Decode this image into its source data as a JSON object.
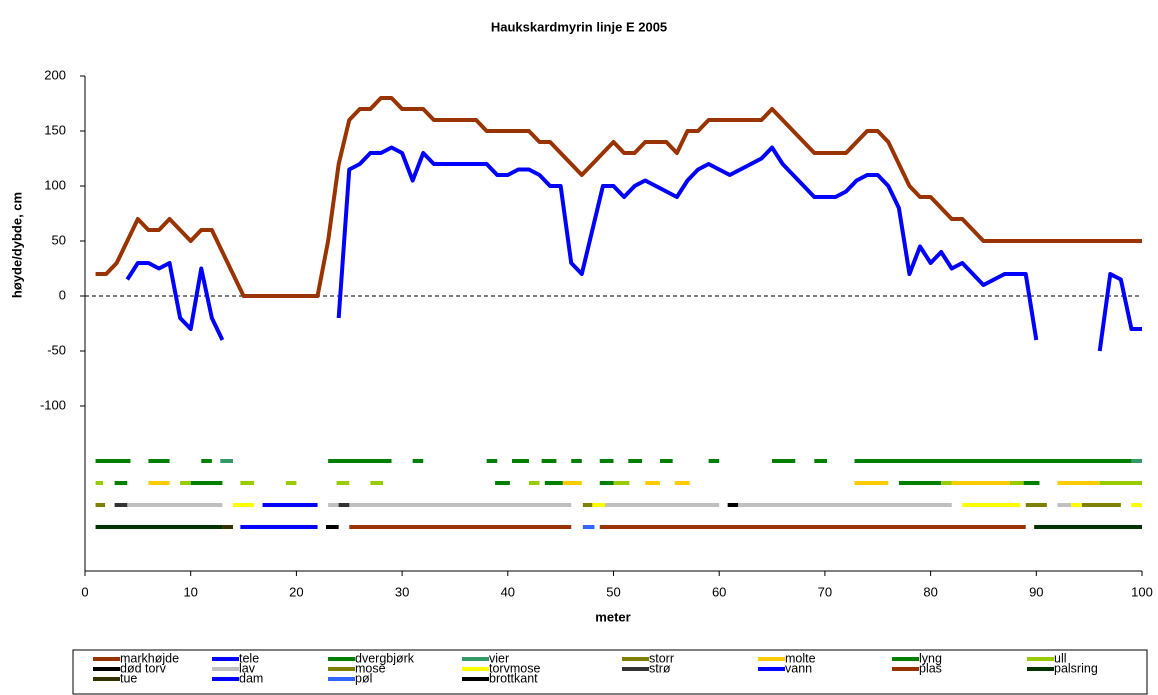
{
  "chart_data": {
    "type": "line",
    "title": "Haukskardmyrin linje E 2005",
    "x_label": "meter",
    "y_label": "høyde/dybde, cm",
    "xlim": [
      0,
      100
    ],
    "xticks": [
      0,
      10,
      20,
      30,
      40,
      50,
      60,
      70,
      80,
      90,
      100
    ],
    "ylim": [
      -250,
      200
    ],
    "yticks": [
      -100,
      -50,
      0,
      50,
      100,
      150,
      200
    ],
    "reference_line": 0,
    "x": [
      1,
      2,
      3,
      4,
      5,
      6,
      7,
      8,
      9,
      10,
      11,
      12,
      13,
      14,
      15,
      16,
      17,
      18,
      19,
      20,
      21,
      22,
      23,
      24,
      25,
      26,
      27,
      28,
      29,
      30,
      31,
      32,
      33,
      34,
      35,
      36,
      37,
      38,
      39,
      40,
      41,
      42,
      43,
      44,
      45,
      46,
      47,
      48,
      49,
      50,
      51,
      52,
      53,
      54,
      55,
      56,
      57,
      58,
      59,
      60,
      61,
      62,
      63,
      64,
      65,
      66,
      67,
      68,
      69,
      70,
      71,
      72,
      73,
      74,
      75,
      76,
      77,
      78,
      79,
      80,
      81,
      82,
      83,
      84,
      85,
      86,
      87,
      88,
      89,
      90,
      91,
      92,
      93,
      94,
      95,
      96,
      97,
      98,
      99,
      100
    ],
    "series": [
      {
        "name": "markhøjde",
        "color": "#993300",
        "values": [
          20,
          20,
          30,
          50,
          70,
          60,
          60,
          70,
          60,
          50,
          60,
          60,
          40,
          20,
          0,
          0,
          0,
          0,
          0,
          0,
          0,
          0,
          50,
          120,
          160,
          170,
          170,
          180,
          180,
          170,
          170,
          170,
          160,
          160,
          160,
          160,
          160,
          150,
          150,
          150,
          150,
          150,
          140,
          140,
          130,
          120,
          110,
          120,
          130,
          140,
          130,
          130,
          140,
          140,
          140,
          130,
          150,
          150,
          160,
          160,
          160,
          160,
          160,
          160,
          170,
          160,
          150,
          140,
          130,
          130,
          130,
          130,
          140,
          150,
          150,
          140,
          120,
          100,
          90,
          90,
          80,
          70,
          70,
          60,
          50,
          50,
          50,
          50,
          50,
          50,
          50,
          50,
          50,
          50,
          50,
          50,
          50,
          50,
          50,
          50
        ]
      },
      {
        "name": "tele",
        "color": "#0000FF",
        "values": [
          null,
          null,
          null,
          15,
          30,
          30,
          25,
          30,
          -20,
          -30,
          25,
          -20,
          -40,
          null,
          null,
          null,
          null,
          null,
          null,
          null,
          null,
          null,
          null,
          -20,
          115,
          120,
          130,
          130,
          135,
          130,
          105,
          130,
          120,
          120,
          120,
          120,
          120,
          120,
          110,
          110,
          115,
          115,
          110,
          100,
          100,
          30,
          20,
          60,
          100,
          100,
          90,
          100,
          105,
          100,
          95,
          90,
          105,
          115,
          120,
          115,
          110,
          115,
          120,
          125,
          135,
          120,
          110,
          100,
          90,
          90,
          90,
          95,
          105,
          110,
          110,
          100,
          80,
          20,
          45,
          30,
          40,
          25,
          30,
          20,
          10,
          15,
          20,
          20,
          20,
          -40,
          null,
          null,
          null,
          null,
          null,
          -50,
          20,
          15,
          -30,
          -30
        ]
      }
    ],
    "segment_series": [
      {
        "name": "dvergbjørk",
        "color": "#008000",
        "level": -150,
        "segments": [
          [
            1,
            4.3
          ],
          [
            6,
            8
          ],
          [
            11,
            12
          ],
          [
            23,
            29
          ],
          [
            31,
            32
          ],
          [
            38,
            39
          ],
          [
            40.4,
            42
          ],
          [
            43.2,
            44.6
          ],
          [
            46,
            47
          ],
          [
            48.7,
            50
          ],
          [
            51.4,
            52.7
          ],
          [
            54.4,
            55.6
          ],
          [
            59,
            60
          ],
          [
            65,
            67.2
          ],
          [
            69,
            70.2
          ],
          [
            72.8,
            99
          ]
        ]
      },
      {
        "name": "vier",
        "color": "#339966",
        "level": -150,
        "segments": [
          [
            12.8,
            14
          ],
          [
            99,
            100
          ]
        ]
      },
      {
        "name": "storr",
        "color": "#808000",
        "level": -190,
        "segments": [
          [
            1,
            1.9
          ],
          [
            89,
            91
          ],
          [
            94.3,
            98
          ]
        ]
      },
      {
        "name": "molte",
        "color": "#FFCC00",
        "level": -170,
        "segments": [
          [
            6,
            8
          ],
          [
            45.2,
            47
          ],
          [
            53,
            54.4
          ],
          [
            55.8,
            57.2
          ],
          [
            72.8,
            76
          ],
          [
            82,
            87.5
          ],
          [
            92,
            96
          ]
        ]
      },
      {
        "name": "lyng",
        "color": "#008000",
        "level": -170,
        "segments": [
          [
            2.8,
            4
          ],
          [
            10,
            13
          ],
          [
            38.8,
            40.2
          ],
          [
            43.5,
            45.2
          ],
          [
            48.7,
            50
          ],
          [
            77,
            81
          ],
          [
            88.8,
            90.3
          ]
        ]
      },
      {
        "name": "ull",
        "color": "#99CC00",
        "level": -170,
        "segments": [
          [
            1,
            1.7
          ],
          [
            9,
            10
          ],
          [
            14.7,
            16
          ],
          [
            19,
            20
          ],
          [
            23.8,
            25
          ],
          [
            27,
            28.2
          ],
          [
            42,
            43
          ],
          [
            50,
            51.5
          ],
          [
            81,
            82
          ],
          [
            87.5,
            88.8
          ],
          [
            96,
            100
          ]
        ]
      },
      {
        "name": "død torv",
        "color": "#000000",
        "level": -190,
        "segments": [
          [
            60.8,
            61.8
          ]
        ]
      },
      {
        "name": "lav",
        "color": "#C0C0C0",
        "level": -190,
        "segments": [
          [
            4,
            13
          ],
          [
            23,
            46
          ],
          [
            49.2,
            60
          ],
          [
            61.8,
            82
          ],
          [
            92,
            93.3
          ]
        ]
      },
      {
        "name": "mose",
        "color": "#808000",
        "level": -190,
        "segments": [
          [
            47.1,
            48
          ]
        ]
      },
      {
        "name": "torvmose",
        "color": "#FFFF00",
        "level": -190,
        "segments": [
          [
            14,
            16
          ],
          [
            48,
            49.2
          ],
          [
            83,
            88.5
          ],
          [
            93.3,
            94.3
          ],
          [
            99,
            100
          ]
        ]
      },
      {
        "name": "strø",
        "color": "#333333",
        "level": -190,
        "segments": [
          [
            2.8,
            4
          ],
          [
            24,
            25
          ]
        ]
      },
      {
        "name": "vann",
        "color": "#0000FF",
        "level": -190,
        "segments": [
          [
            16.8,
            22
          ]
        ]
      },
      {
        "name": "plas",
        "color": "#993300",
        "level": -210,
        "segments": [
          [
            25,
            46
          ],
          [
            48.7,
            89
          ]
        ]
      },
      {
        "name": "palsring",
        "color": "#003300",
        "level": -210,
        "segments": [
          [
            1,
            13
          ],
          [
            89.8,
            100
          ]
        ]
      },
      {
        "name": "tue",
        "color": "#333300",
        "level": -210,
        "segments": [
          [
            13,
            14
          ]
        ]
      },
      {
        "name": "dam",
        "color": "#0000FF",
        "level": -210,
        "segments": [
          [
            14.7,
            22
          ]
        ]
      },
      {
        "name": "pøl",
        "color": "#3366FF",
        "level": -210,
        "segments": [
          [
            47.1,
            48.2
          ]
        ]
      },
      {
        "name": "brottkant",
        "color": "#000000",
        "level": -210,
        "segments": [
          [
            22.8,
            24
          ]
        ]
      }
    ]
  }
}
